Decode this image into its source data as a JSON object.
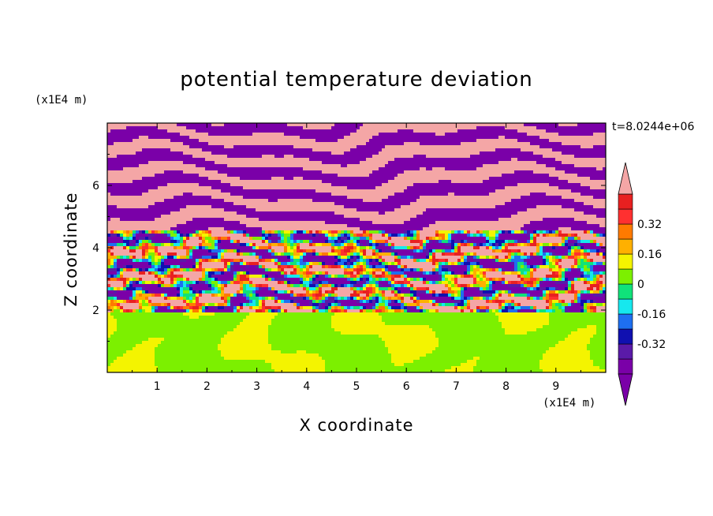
{
  "chart_data": {
    "type": "heatmap",
    "title": "potential temperature deviation",
    "xlabel": "X coordinate",
    "ylabel": "Z coordinate",
    "x_unit": "(x1E4 m)",
    "y_unit": "(x1E4 m)",
    "time_label": "t=8.0244e+06",
    "xlim": [
      0,
      10
    ],
    "ylim": [
      0,
      8
    ],
    "x_ticks": [
      "1",
      "2",
      "3",
      "4",
      "5",
      "6",
      "7",
      "8",
      "9"
    ],
    "y_ticks": [
      "2",
      "4",
      "6"
    ],
    "colorbar": {
      "levels": [
        -0.48,
        -0.4,
        -0.32,
        -0.24,
        -0.16,
        -0.08,
        0,
        0.08,
        0.16,
        0.24,
        0.32,
        0.4,
        0.48
      ],
      "tick_labels": [
        "0.32",
        "0.16",
        "0",
        "-0.16",
        "-0.32"
      ],
      "tick_values": [
        0.32,
        0.16,
        0,
        -0.16,
        -0.32
      ],
      "colors": [
        "#7a00a8",
        "#5a1aa8",
        "#1010b0",
        "#1e6ff0",
        "#16e8ee",
        "#10e27a",
        "#7cf000",
        "#f4f400",
        "#ffb000",
        "#ff7a00",
        "#ff3030",
        "#e82020",
        "#f4a6a6"
      ],
      "over_color": "#f4a6a6",
      "under_color": "#7a00a8"
    }
  }
}
